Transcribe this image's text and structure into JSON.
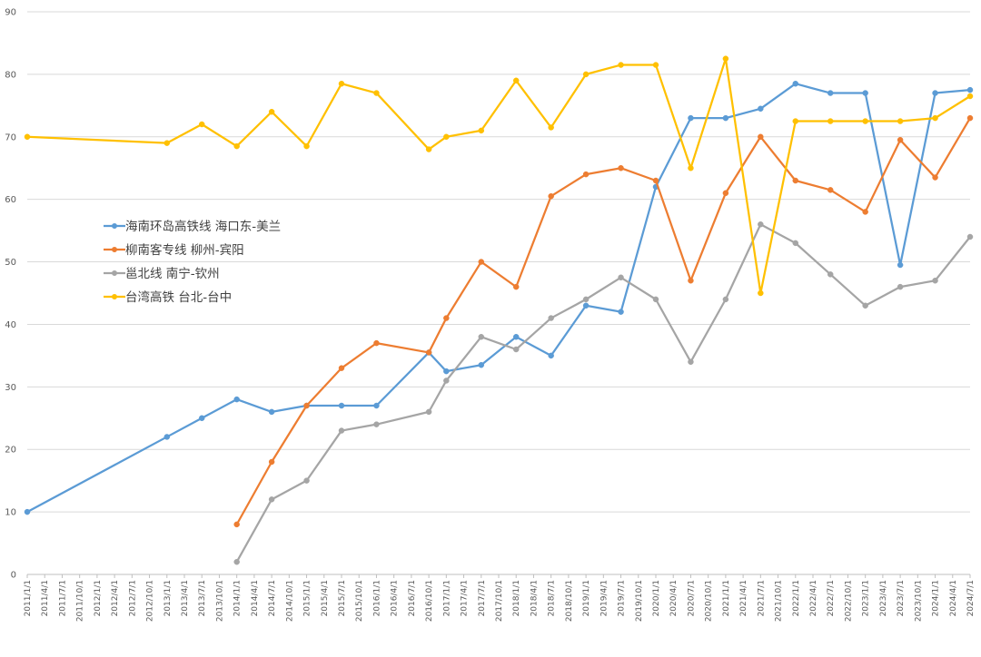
{
  "chart_data": {
    "type": "line",
    "title": "",
    "xlabel": "",
    "ylabel": "",
    "ylim": [
      0,
      90
    ],
    "yticks": [
      0,
      10,
      20,
      30,
      40,
      50,
      60,
      70,
      80,
      90
    ],
    "grid": true,
    "legend": "left-middle",
    "categories": [
      "2011/1/1",
      "2011/4/1",
      "2011/7/1",
      "2011/10/1",
      "2012/1/1",
      "2012/4/1",
      "2012/7/1",
      "2012/10/1",
      "2013/1/1",
      "2013/4/1",
      "2013/7/1",
      "2013/10/1",
      "2014/1/1",
      "2014/4/1",
      "2014/7/1",
      "2014/10/1",
      "2015/1/1",
      "2015/4/1",
      "2015/7/1",
      "2015/10/1",
      "2016/1/1",
      "2016/4/1",
      "2016/7/1",
      "2016/10/1",
      "2017/1/1",
      "2017/4/1",
      "2017/7/1",
      "2017/10/1",
      "2018/1/1",
      "2018/4/1",
      "2018/7/1",
      "2018/10/1",
      "2019/1/1",
      "2019/4/1",
      "2019/7/1",
      "2019/10/1",
      "2020/1/1",
      "2020/4/1",
      "2020/7/1",
      "2020/10/1",
      "2021/1/1",
      "2021/4/1",
      "2021/7/1",
      "2021/10/1",
      "2022/1/1",
      "2022/4/1",
      "2022/7/1",
      "2022/10/1",
      "2023/1/1",
      "2023/4/1",
      "2023/7/1",
      "2023/10/1",
      "2024/1/1",
      "2024/4/1",
      "2024/7/1"
    ],
    "series": [
      {
        "name": "海南环岛高铁线 海口东-美兰",
        "color": "#5b9bd5",
        "points": [
          [
            "2011/1/1",
            10
          ],
          [
            "2013/1/1",
            22
          ],
          [
            "2013/7/1",
            25
          ],
          [
            "2014/1/1",
            28
          ],
          [
            "2014/7/1",
            26
          ],
          [
            "2015/1/1",
            27
          ],
          [
            "2015/7/1",
            27
          ],
          [
            "2016/1/1",
            27
          ],
          [
            "2016/10/1",
            35.5
          ],
          [
            "2017/1/1",
            32.5
          ],
          [
            "2017/7/1",
            33.5
          ],
          [
            "2018/1/1",
            38
          ],
          [
            "2018/7/1",
            35
          ],
          [
            "2019/1/1",
            43
          ],
          [
            "2019/7/1",
            42
          ],
          [
            "2020/1/1",
            62
          ],
          [
            "2020/7/1",
            73
          ],
          [
            "2021/1/1",
            73
          ],
          [
            "2021/7/1",
            74.5
          ],
          [
            "2022/1/1",
            78.5
          ],
          [
            "2022/7/1",
            77
          ],
          [
            "2023/1/1",
            77
          ],
          [
            "2023/7/1",
            49.5
          ],
          [
            "2024/1/1",
            77
          ],
          [
            "2024/7/1",
            77.5
          ]
        ]
      },
      {
        "name": "柳南客专线 柳州-宾阳",
        "color": "#ed7d31",
        "points": [
          [
            "2014/1/1",
            8
          ],
          [
            "2014/7/1",
            18
          ],
          [
            "2015/1/1",
            27
          ],
          [
            "2015/7/1",
            33
          ],
          [
            "2016/1/1",
            37
          ],
          [
            "2016/10/1",
            35.5
          ],
          [
            "2017/1/1",
            41
          ],
          [
            "2017/7/1",
            50
          ],
          [
            "2018/1/1",
            46
          ],
          [
            "2018/7/1",
            60.5
          ],
          [
            "2019/1/1",
            64
          ],
          [
            "2019/7/1",
            65
          ],
          [
            "2020/1/1",
            63
          ],
          [
            "2020/7/1",
            47
          ],
          [
            "2021/1/1",
            61
          ],
          [
            "2021/7/1",
            70
          ],
          [
            "2022/1/1",
            63
          ],
          [
            "2022/7/1",
            61.5
          ],
          [
            "2023/1/1",
            58
          ],
          [
            "2023/7/1",
            69.5
          ],
          [
            "2024/1/1",
            63.5
          ],
          [
            "2024/7/1",
            73
          ]
        ]
      },
      {
        "name": "邕北线 南宁-钦州",
        "color": "#a5a5a5",
        "points": [
          [
            "2014/1/1",
            2
          ],
          [
            "2014/7/1",
            12
          ],
          [
            "2015/1/1",
            15
          ],
          [
            "2015/7/1",
            23
          ],
          [
            "2016/1/1",
            24
          ],
          [
            "2016/10/1",
            26
          ],
          [
            "2017/1/1",
            31
          ],
          [
            "2017/7/1",
            38
          ],
          [
            "2018/1/1",
            36
          ],
          [
            "2018/7/1",
            41
          ],
          [
            "2019/1/1",
            44
          ],
          [
            "2019/7/1",
            47.5
          ],
          [
            "2020/1/1",
            44
          ],
          [
            "2020/7/1",
            34
          ],
          [
            "2021/1/1",
            44
          ],
          [
            "2021/7/1",
            56
          ],
          [
            "2022/1/1",
            53
          ],
          [
            "2022/7/1",
            48
          ],
          [
            "2023/1/1",
            43
          ],
          [
            "2023/7/1",
            46
          ],
          [
            "2024/1/1",
            47
          ],
          [
            "2024/7/1",
            54
          ]
        ]
      },
      {
        "name": "台湾高铁 台北-台中",
        "color": "#ffc000",
        "points": [
          [
            "2011/1/1",
            70
          ],
          [
            "2013/1/1",
            69
          ],
          [
            "2013/7/1",
            72
          ],
          [
            "2014/1/1",
            68.5
          ],
          [
            "2014/7/1",
            74
          ],
          [
            "2015/1/1",
            68.5
          ],
          [
            "2015/7/1",
            78.5
          ],
          [
            "2016/1/1",
            77
          ],
          [
            "2016/10/1",
            68
          ],
          [
            "2017/1/1",
            70
          ],
          [
            "2017/7/1",
            71
          ],
          [
            "2018/1/1",
            79
          ],
          [
            "2018/7/1",
            71.5
          ],
          [
            "2019/1/1",
            80
          ],
          [
            "2019/7/1",
            81.5
          ],
          [
            "2020/1/1",
            81.5
          ],
          [
            "2020/7/1",
            65
          ],
          [
            "2021/1/1",
            82.5
          ],
          [
            "2021/7/1",
            45
          ],
          [
            "2022/1/1",
            72.5
          ],
          [
            "2022/7/1",
            72.5
          ],
          [
            "2023/1/1",
            72.5
          ],
          [
            "2023/7/1",
            72.5
          ],
          [
            "2024/1/1",
            73
          ],
          [
            "2024/7/1",
            76.5
          ]
        ]
      }
    ]
  }
}
